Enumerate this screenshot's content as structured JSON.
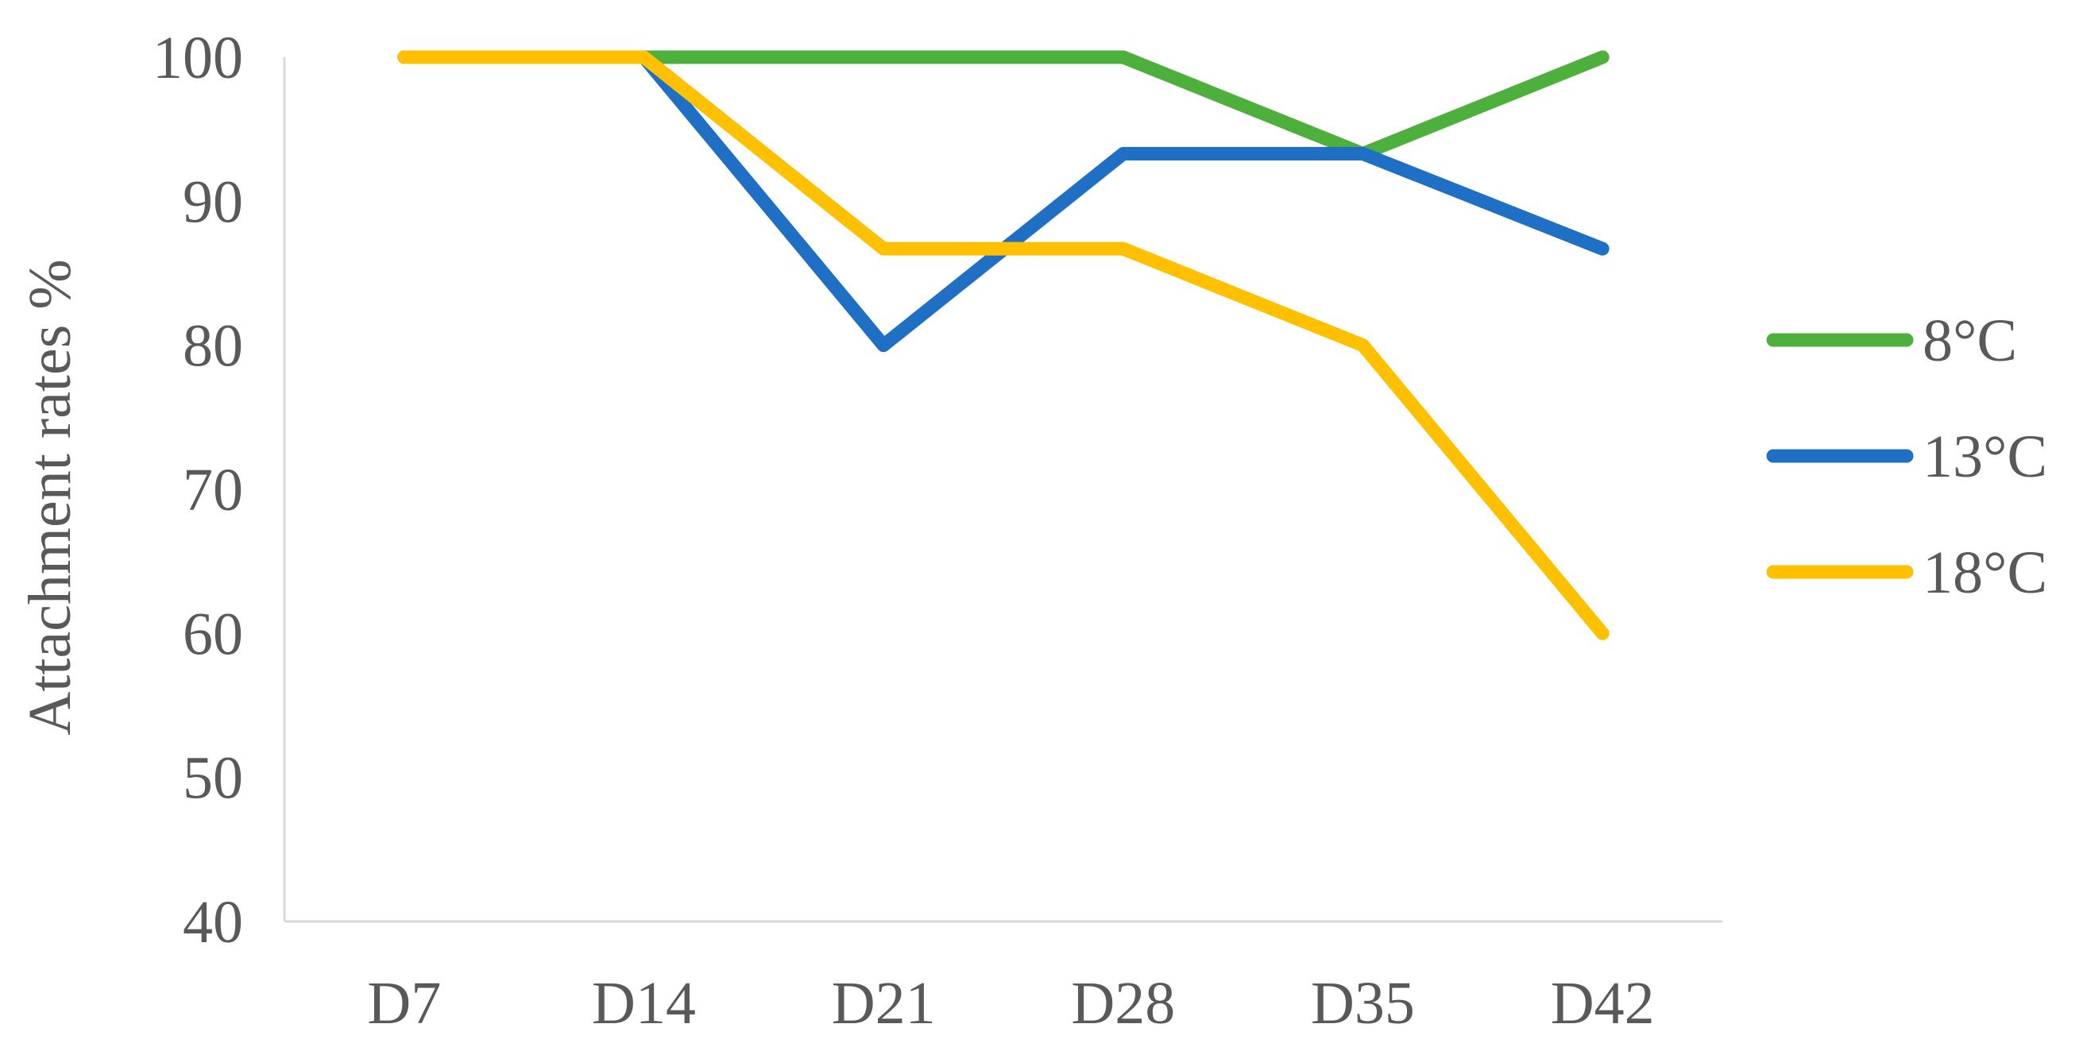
{
  "chart_data": {
    "type": "line",
    "categories": [
      "D7",
      "D14",
      "D21",
      "D28",
      "D35",
      "D42"
    ],
    "series": [
      {
        "name": "8°C",
        "values": [
          100,
          100,
          100,
          100,
          93.3,
          100
        ],
        "color": "#4DAF3C"
      },
      {
        "name": "13°C",
        "values": [
          100,
          100,
          80,
          93.3,
          93.3,
          86.7
        ],
        "color": "#1F6FC5"
      },
      {
        "name": "18°C",
        "values": [
          100,
          100,
          86.7,
          86.7,
          80,
          60
        ],
        "color": "#FFC000"
      }
    ],
    "ylabel": "Attachment rates %",
    "xlabel": "",
    "ylim": [
      40,
      100
    ],
    "yticks": [
      "40",
      "50",
      "60",
      "70",
      "80",
      "90",
      "100"
    ],
    "grid": false,
    "legend_position": "right"
  }
}
